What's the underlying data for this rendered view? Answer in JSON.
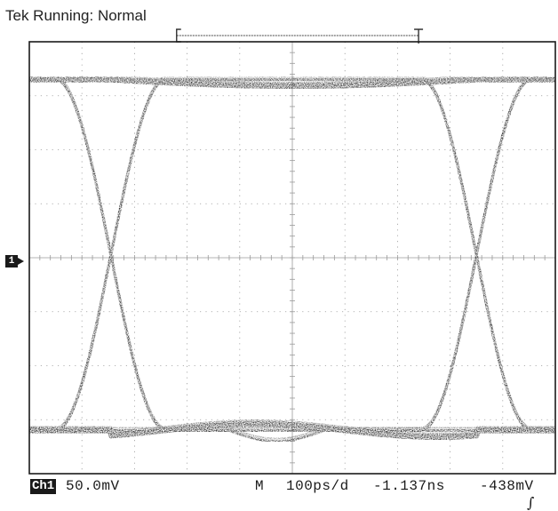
{
  "status": "Tek Running: Normal",
  "channel": {
    "badge": "Ch1",
    "scale": "50.0mV",
    "ground_marker": "1"
  },
  "horizontal": {
    "mode": "M",
    "timebase": "100ps/d",
    "delay": "-1.137ns"
  },
  "trigger": {
    "level": "-438mV"
  },
  "colors": {
    "trace": "#1e1e1e",
    "grid": "#9a9a9a",
    "frame": "#1a1a1a",
    "background": "#ffffff"
  },
  "chart_data": {
    "type": "line",
    "title": "",
    "xlabel": "",
    "ylabel": "",
    "x_divisions": 10,
    "y_divisions": 8,
    "xlim": [
      0,
      10
    ],
    "ylim": [
      -4,
      4
    ],
    "grid": true,
    "levels": {
      "high": 3.3,
      "low": -3.2
    },
    "crossings": [
      {
        "x": 1.55,
        "y": 0.0
      },
      {
        "x": 8.5,
        "y": 0.0
      }
    ],
    "transition_width_div": 2.1,
    "series": [
      {
        "values": []
      }
    ],
    "cursor_bar": {
      "x_start": 2.8,
      "x_end": 7.4
    }
  }
}
